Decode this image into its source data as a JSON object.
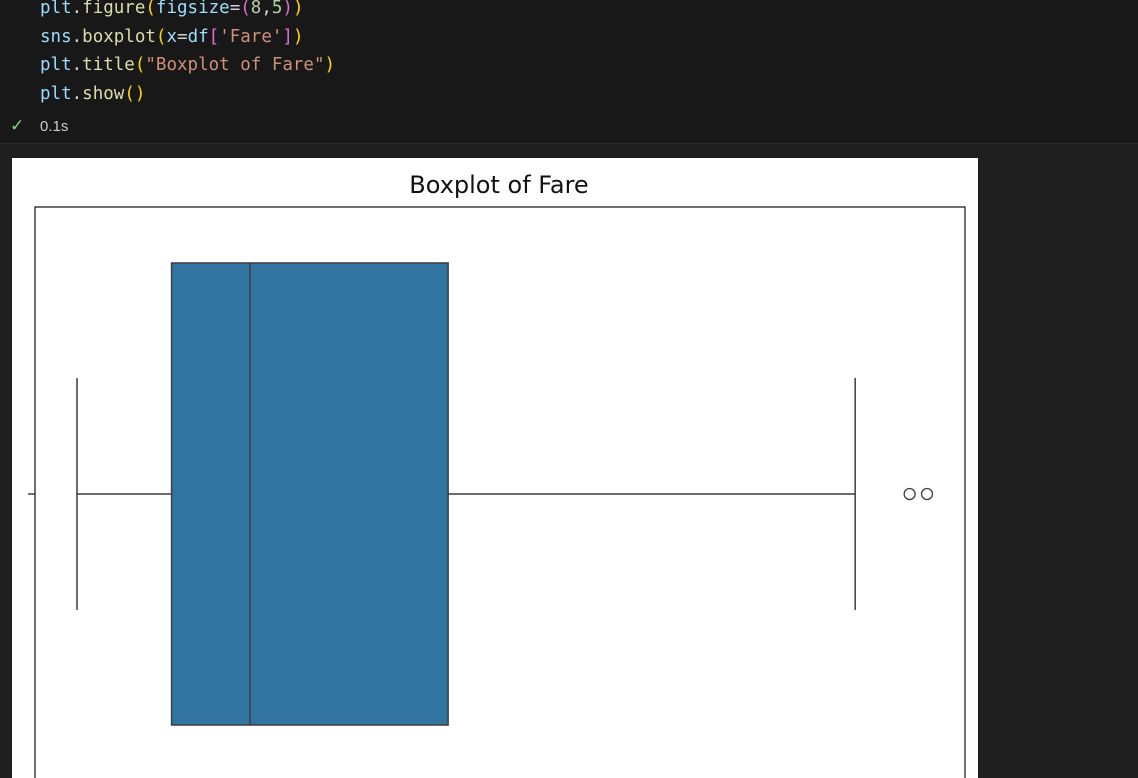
{
  "code_lines": [
    "plt.figure(figsize=(8,5))",
    "sns.boxplot(x=df['Fare'])",
    "plt.title(\"Boxplot of Fare\")",
    "plt.show()"
  ],
  "cell_status": {
    "icon": "check-icon",
    "duration": "0.1s"
  },
  "colors": {
    "box_fill": "#3274a1",
    "line": "#3d3d3d"
  },
  "chart_data": {
    "type": "box",
    "title": "Boxplot of Fare",
    "xlabel": "",
    "ylabel": "",
    "orientation": "horizontal",
    "variable": "Fare",
    "stats": {
      "whisker_low": 0,
      "q1": 7.9,
      "median": 14.45,
      "q3": 31.0,
      "whisker_high": 65.0
    },
    "outliers": [
      69.55,
      71.0
    ]
  }
}
